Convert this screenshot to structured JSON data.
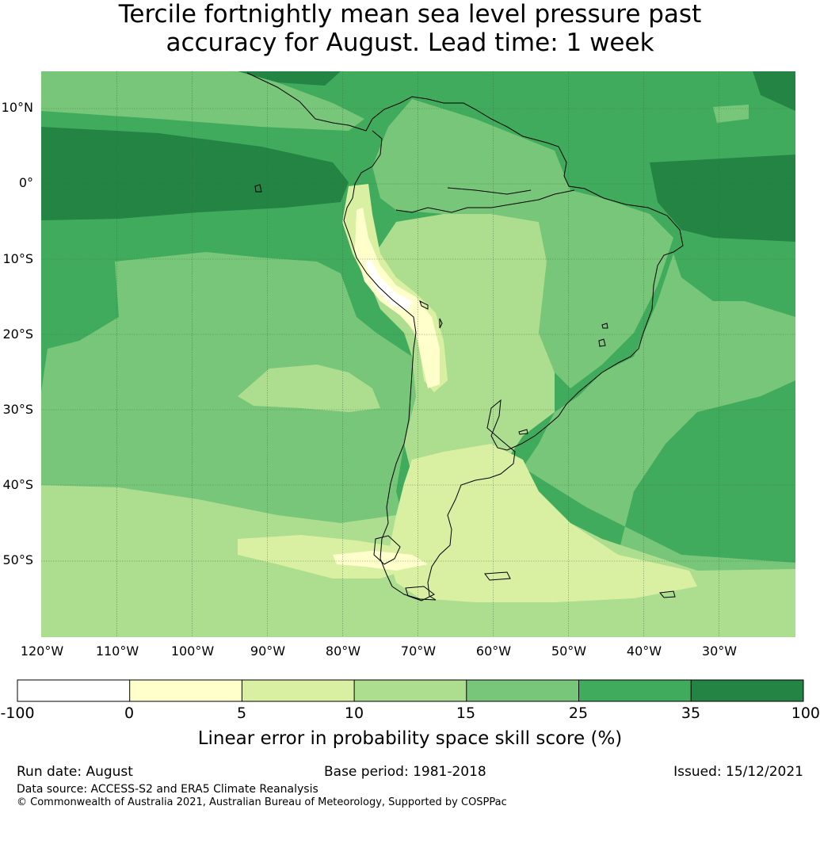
{
  "title": {
    "line1": "Tercile fortnightly mean sea level pressure past",
    "line2": "accuracy for August. Lead time: 1 week"
  },
  "lat_labels": [
    "10°N",
    "0°",
    "10°S",
    "20°S",
    "30°S",
    "40°S",
    "50°S"
  ],
  "lon_labels": [
    "120°W",
    "110°W",
    "100°W",
    "90°W",
    "80°W",
    "70°W",
    "60°W",
    "50°W",
    "40°W",
    "30°W"
  ],
  "colorbar": {
    "ticks": [
      "-100",
      "0",
      "5",
      "10",
      "15",
      "25",
      "35",
      "100"
    ],
    "colors": [
      "#ffffff",
      "#ffffcc",
      "#d9f0a3",
      "#addd8e",
      "#78c679",
      "#41ab5d",
      "#238443"
    ],
    "title": "Linear error in probability space skill score (%)"
  },
  "footer": {
    "run_date": "Run date: August",
    "base_period": "Base period: 1981-2018",
    "issued": "Issued: 15/12/2021",
    "data_source": "Data source: ACCESS-S2 and ERA5 Climate Reanalysis",
    "copyright": "© Commonwealth of Australia 2021, Australian Bureau of Meteorology, Supported by COSPPac"
  }
}
